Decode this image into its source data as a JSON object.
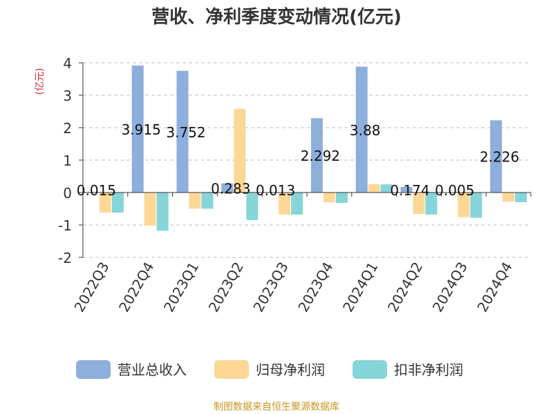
{
  "chart_data": {
    "type": "bar",
    "title": "营收、净利季度变动情况(亿元)",
    "ylabel": "(亿元)",
    "ylim": [
      -2,
      4
    ],
    "yticks": [
      -2,
      -1,
      0,
      1,
      2,
      3,
      4
    ],
    "grid": true,
    "legend_position": "bottom",
    "categories": [
      "2022Q3",
      "2022Q4",
      "2023Q1",
      "2023Q2",
      "2023Q3",
      "2023Q4",
      "2024Q1",
      "2024Q2",
      "2024Q3",
      "2024Q4"
    ],
    "series": [
      {
        "name": "营业总收入",
        "color": "#8eaedc",
        "values": [
          0.015,
          3.915,
          3.752,
          0.283,
          0.013,
          2.292,
          3.88,
          0.174,
          0.005,
          2.226
        ],
        "labels": [
          "0.015",
          "3.915",
          "3.752",
          "0.283",
          "0.013",
          "2.292",
          "3.88",
          "0.174",
          "0.005",
          "2.226"
        ]
      },
      {
        "name": "归母净利润",
        "color": "#fdd796",
        "values": [
          -0.62,
          -1.02,
          -0.5,
          2.58,
          -0.68,
          -0.3,
          0.26,
          -0.66,
          -0.76,
          -0.28
        ]
      },
      {
        "name": "扣非净利润",
        "color": "#86d5d8",
        "values": [
          -0.62,
          -1.18,
          -0.5,
          -0.85,
          -0.68,
          -0.32,
          0.25,
          -0.68,
          -0.78,
          -0.3
        ]
      }
    ],
    "colors": {
      "label": "#111111",
      "axis": "#333333",
      "grid": "#cccccc",
      "ylabel": "#e0262b"
    }
  },
  "source": "制图数据来自恒生聚源数据库"
}
